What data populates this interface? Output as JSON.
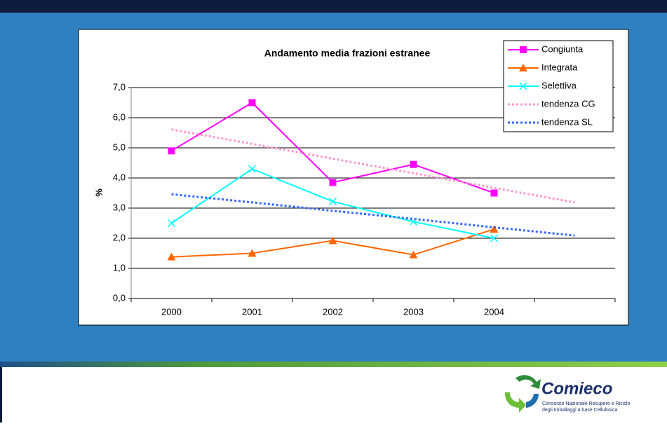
{
  "chart_data": {
    "type": "line",
    "title": "Andamento media frazioni estranee",
    "y_label": "%",
    "categories": [
      "2000",
      "2001",
      "2002",
      "2003",
      "2004",
      null
    ],
    "series": [
      {
        "name": "Congiunta",
        "color": "#ff00ff",
        "marker": "square",
        "values": [
          4.9,
          6.5,
          3.85,
          4.45,
          3.5,
          null
        ]
      },
      {
        "name": "Integrata",
        "color": "#ff6600",
        "marker": "triangle",
        "values": [
          1.38,
          1.5,
          1.92,
          1.45,
          2.3,
          null
        ]
      },
      {
        "name": "Selettiva",
        "color": "#00ffff",
        "marker": "x",
        "values": [
          2.5,
          4.3,
          3.22,
          2.55,
          2.0,
          null
        ]
      },
      {
        "name": "tendenza CG",
        "color": "#ff99cc",
        "dash": "dotted",
        "values": [
          5.61,
          5.13,
          4.64,
          4.16,
          3.67,
          3.19
        ]
      },
      {
        "name": "tendenza SL",
        "color": "#3366ff",
        "dash": "dotted",
        "values": [
          3.46,
          3.19,
          2.91,
          2.64,
          2.36,
          2.09
        ]
      }
    ],
    "ylim": [
      0,
      7
    ],
    "yticks": [
      {
        "value": 0,
        "label": "0,0"
      },
      {
        "value": 1,
        "label": "1,0"
      },
      {
        "value": 2,
        "label": "2,0"
      },
      {
        "value": 3,
        "label": "3,0"
      },
      {
        "value": 4,
        "label": "4,0"
      },
      {
        "value": 5,
        "label": "5,0"
      },
      {
        "value": 6,
        "label": "6,0"
      },
      {
        "value": 7,
        "label": "7,0"
      }
    ],
    "grid": true,
    "legend": "top-right"
  },
  "logo": {
    "name": "Comieco",
    "tagline": [
      "Consorzio Nazionale Recupero e Riciclo",
      "degli Imballaggi a base Cellulosica"
    ]
  }
}
